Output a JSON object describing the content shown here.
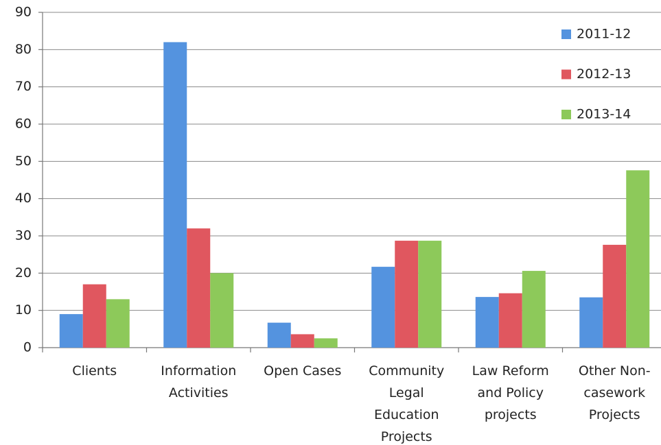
{
  "chart_data": {
    "type": "bar",
    "categories": [
      "Clients",
      "Information\nActivities",
      "Open Cases",
      "Community\nLegal\nEducation\nProjects",
      "Law Reform\nand Policy\nprojects",
      "Other Non-\ncasework\nProjects"
    ],
    "series": [
      {
        "name": "2011-12",
        "color": "#5493df",
        "values": [
          9,
          82,
          6.7,
          21.7,
          13.6,
          13.5
        ]
      },
      {
        "name": "2012-13",
        "color": "#e0575f",
        "values": [
          17,
          32,
          3.6,
          28.7,
          14.6,
          27.6
        ]
      },
      {
        "name": "2013-14",
        "color": "#8dc95a",
        "values": [
          13,
          20,
          2.5,
          28.7,
          20.6,
          47.6
        ]
      }
    ],
    "ylim": [
      0,
      90
    ],
    "yticks": [
      0,
      10,
      20,
      30,
      40,
      50,
      60,
      70,
      80,
      90
    ],
    "grid": true,
    "legend": "top-right"
  }
}
